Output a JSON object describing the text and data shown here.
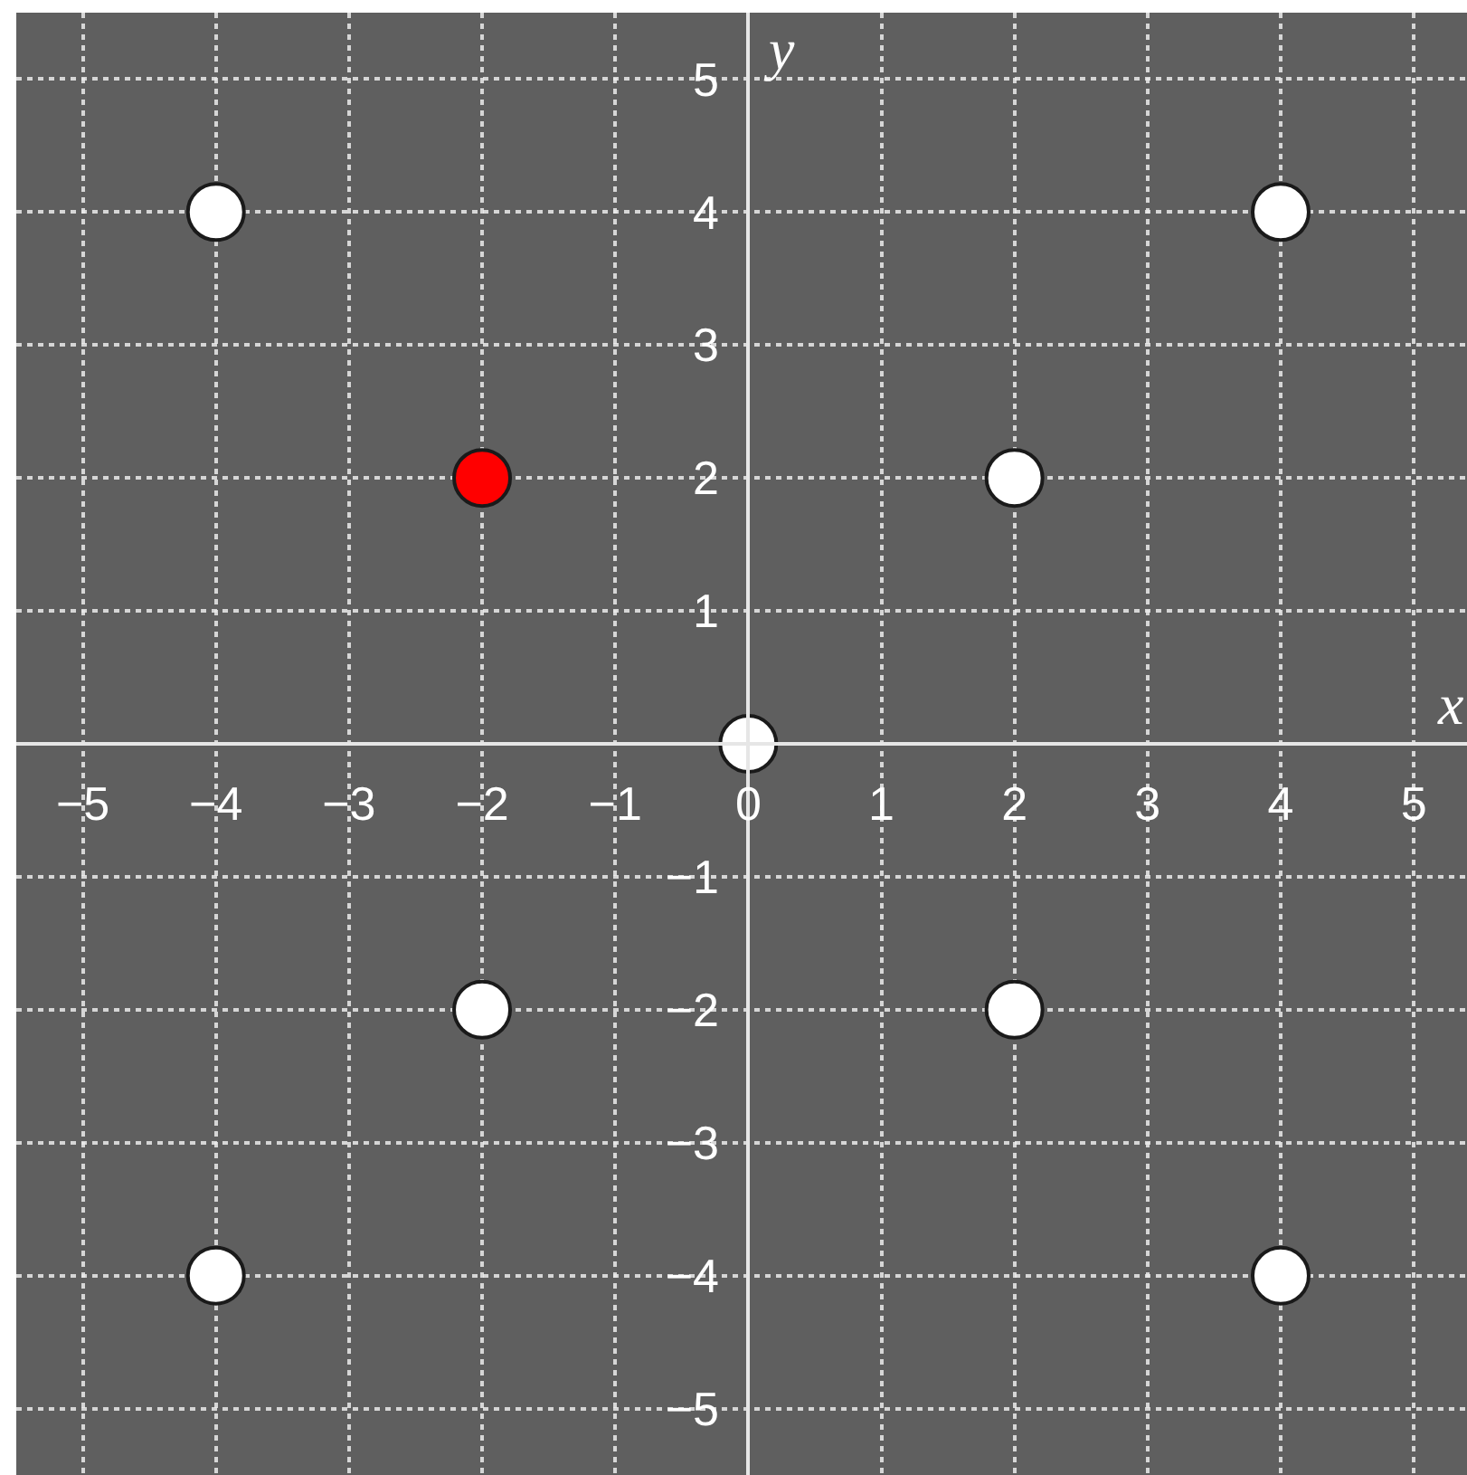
{
  "chart_data": {
    "type": "scatter",
    "xlabel": "x",
    "ylabel": "y",
    "x": [
      -4,
      4,
      -2,
      2,
      0,
      -2,
      2,
      -4,
      4
    ],
    "values": [
      4,
      4,
      2,
      2,
      0,
      -2,
      -2,
      -4,
      -4
    ],
    "colors": [
      "#ffffff",
      "#ffffff",
      "#ff0000",
      "#ffffff",
      "#ffffff",
      "#ffffff",
      "#ffffff",
      "#ffffff",
      "#ffffff"
    ],
    "xlim": [
      -5.5,
      5.4
    ],
    "ylim": [
      -5.5,
      5.5
    ],
    "xticks": [
      -5,
      -4,
      -3,
      -2,
      -1,
      0,
      1,
      2,
      3,
      4,
      5
    ],
    "yticks": [
      -5,
      -4,
      -3,
      -2,
      -1,
      1,
      2,
      3,
      4,
      5
    ],
    "grid": true,
    "marker": "circle"
  }
}
